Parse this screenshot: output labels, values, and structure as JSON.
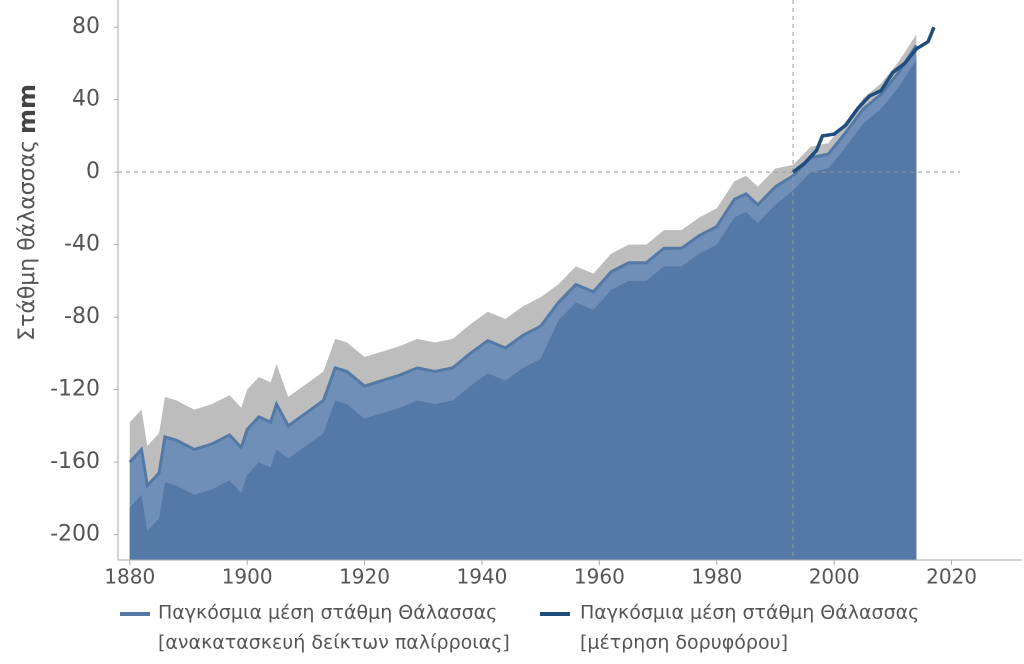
{
  "chart_data": {
    "type": "band-line",
    "ylabel": "Στάθμη θάλασσας",
    "yunit": "mm",
    "xlim": [
      1878,
      2032
    ],
    "xticks": [
      1880,
      1900,
      1920,
      1940,
      1960,
      1980,
      2000,
      2020
    ],
    "ylim": [
      -214,
      95
    ],
    "yticks": [
      -200,
      -160,
      -120,
      -80,
      -40,
      0,
      40,
      80
    ],
    "vline": 1993,
    "hline": 0,
    "series": [
      {
        "name": "Παγκόσμια μέση στάθμη Θάλασσας",
        "detail": "[ανακατασκευή δείκτων παλίρροιας]",
        "color": "#5479a6",
        "band_color": "#bdbdbd",
        "x": [
          1880,
          1882,
          1883,
          1885,
          1886,
          1888,
          1891,
          1894,
          1897,
          1899,
          1900,
          1902,
          1904,
          1905,
          1907,
          1910,
          1913,
          1915,
          1917,
          1920,
          1923,
          1926,
          1929,
          1932,
          1935,
          1938,
          1941,
          1944,
          1947,
          1950,
          1953,
          1956,
          1959,
          1962,
          1965,
          1968,
          1971,
          1974,
          1977,
          1980,
          1983,
          1985,
          1987,
          1990,
          1993,
          1996,
          1999,
          2002,
          2005,
          2008,
          2011,
          2014
        ],
        "values": [
          -160,
          -153,
          -173,
          -166,
          -146,
          -148,
          -153,
          -150,
          -145,
          -152,
          -142,
          -135,
          -138,
          -128,
          -140,
          -133,
          -126,
          -108,
          -110,
          -118,
          -115,
          -112,
          -108,
          -110,
          -108,
          -100,
          -93,
          -97,
          -90,
          -85,
          -72,
          -62,
          -66,
          -55,
          -50,
          -50,
          -42,
          -42,
          -35,
          -30,
          -15,
          -12,
          -18,
          -8,
          -2,
          8,
          10,
          22,
          35,
          43,
          55,
          70
        ],
        "upper": [
          -138,
          -131,
          -151,
          -144,
          -124,
          -126,
          -131,
          -128,
          -123,
          -130,
          -120,
          -113,
          -116,
          -106,
          -124,
          -117,
          -110,
          -92,
          -94,
          -102,
          -99,
          -96,
          -92,
          -94,
          -92,
          -84,
          -77,
          -81,
          -74,
          -69,
          -62,
          -52,
          -56,
          -45,
          -40,
          -40,
          -32,
          -32,
          -25,
          -20,
          -5,
          -2,
          -8,
          2,
          4,
          14,
          16,
          28,
          41,
          49,
          61,
          76
        ],
        "lower": [
          -185,
          -178,
          -198,
          -191,
          -171,
          -173,
          -178,
          -175,
          -170,
          -177,
          -167,
          -160,
          -163,
          -153,
          -158,
          -151,
          -144,
          -126,
          -128,
          -136,
          -133,
          -130,
          -126,
          -128,
          -126,
          -118,
          -111,
          -115,
          -108,
          -103,
          -82,
          -72,
          -76,
          -65,
          -60,
          -60,
          -52,
          -52,
          -45,
          -40,
          -25,
          -22,
          -28,
          -18,
          -10,
          0,
          2,
          14,
          27,
          35,
          47,
          62
        ]
      },
      {
        "name": "Παγκόσμια μέση στάθμη Θάλασσας",
        "detail": "[μέτρηση δορυφόρου]",
        "color": "#1f4e7e",
        "x": [
          1993,
          1995,
          1997,
          1998,
          2000,
          2002,
          2004,
          2006,
          2008,
          2010,
          2012,
          2014,
          2016,
          2017
        ],
        "values": [
          0,
          5,
          12,
          20,
          21,
          26,
          35,
          42,
          45,
          55,
          60,
          68,
          72,
          80
        ]
      }
    ]
  }
}
